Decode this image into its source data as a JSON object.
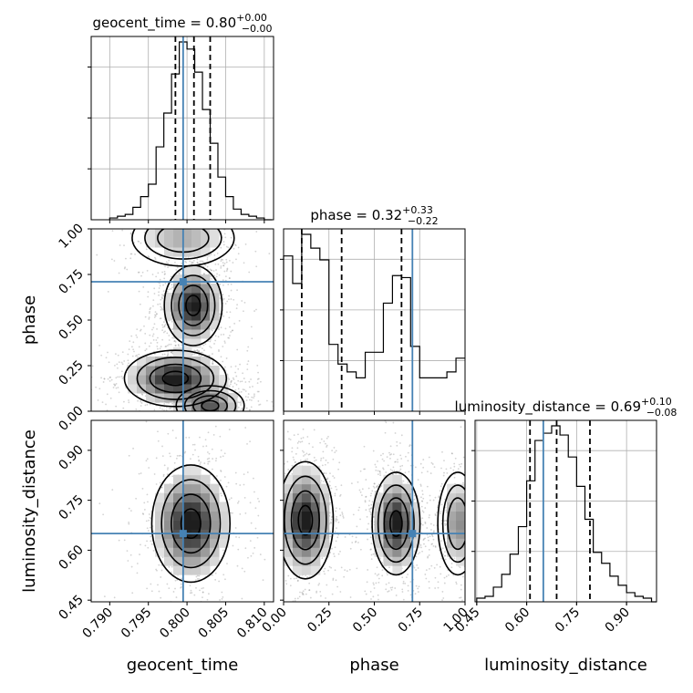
{
  "chart_data": {
    "type": "corner",
    "parameters": [
      "geocent_time",
      "phase",
      "luminosity_distance"
    ],
    "truths": {
      "geocent_time": 0.7995,
      "phase": 0.71,
      "luminosity_distance": 0.65
    },
    "titles": {
      "geocent_time": {
        "name": "geocent_time",
        "median": "0.80",
        "plus": "+0.00",
        "minus": "−0.00"
      },
      "phase": {
        "name": "phase",
        "median": "0.32",
        "plus": "+0.33",
        "minus": "−0.22"
      },
      "luminosity_distance": {
        "name": "luminosity_distance",
        "median": "0.69",
        "plus": "+0.10",
        "minus": "−0.08"
      }
    },
    "ranges": {
      "geocent_time": [
        0.7876,
        0.8112
      ],
      "phase": [
        0.0,
        1.0
      ],
      "luminosity_distance": [
        0.445,
        0.99
      ]
    },
    "ticks": {
      "geocent_time": [
        "0.790",
        "0.795",
        "0.800",
        "0.805",
        "0.810"
      ],
      "phase": [
        "0.00",
        "0.25",
        "0.50",
        "0.75",
        "1.00"
      ],
      "luminosity_distance": [
        "0.45",
        "0.60",
        "0.75",
        "0.90"
      ]
    },
    "quantiles": {
      "geocent_time": [
        0.7985,
        0.8009,
        0.803
      ],
      "phase": [
        0.1,
        0.32,
        0.65
      ],
      "luminosity_distance": [
        0.61,
        0.69,
        0.79
      ]
    },
    "histograms": {
      "geocent_time": {
        "edges": [
          0.79,
          0.791,
          0.792,
          0.793,
          0.794,
          0.795,
          0.796,
          0.797,
          0.798,
          0.799,
          0.8,
          0.801,
          0.802,
          0.803,
          0.804,
          0.805,
          0.806,
          0.807,
          0.808,
          0.809,
          0.81,
          0.811
        ],
        "counts": [
          1,
          2,
          3,
          7,
          13,
          20,
          41,
          60,
          82,
          100,
          96,
          83,
          62,
          43,
          24,
          13,
          6,
          3,
          2,
          1,
          0
        ]
      },
      "phase": {
        "edges": [
          0.0,
          0.05,
          0.1,
          0.15,
          0.2,
          0.25,
          0.3,
          0.35,
          0.4,
          0.45,
          0.5,
          0.55,
          0.6,
          0.65,
          0.7,
          0.75,
          0.8,
          0.85,
          0.9,
          0.95,
          1.0
        ],
        "counts": [
          79,
          65,
          90,
          83,
          77,
          34,
          24,
          20,
          17,
          30,
          30,
          55,
          69,
          68,
          33,
          17,
          17,
          17,
          20,
          27
        ]
      },
      "luminosity_distance": {
        "edges": [
          0.45,
          0.475,
          0.5,
          0.525,
          0.55,
          0.575,
          0.6,
          0.625,
          0.65,
          0.675,
          0.7,
          0.725,
          0.75,
          0.775,
          0.8,
          0.825,
          0.85,
          0.875,
          0.9,
          0.925,
          0.95,
          0.975,
          1.0
        ],
        "counts": [
          2,
          3,
          8,
          15,
          26,
          41,
          66,
          88,
          92,
          96,
          91,
          79,
          63,
          45,
          27,
          21,
          14,
          9,
          5,
          3,
          2,
          0
        ]
      }
    },
    "density_modes": [
      {
        "pair": [
          "geocent_time",
          "phase"
        ],
        "blobs": [
          {
            "cx": 0.8008,
            "cy": 0.58,
            "sx": 0.0017,
            "sy": 0.1,
            "w": 1.0
          },
          {
            "cx": 0.7985,
            "cy": 0.18,
            "sx": 0.003,
            "sy": 0.07,
            "w": 1.0
          },
          {
            "cx": 0.803,
            "cy": 0.03,
            "sx": 0.002,
            "sy": 0.05,
            "w": 0.7
          },
          {
            "cx": 0.7995,
            "cy": 0.95,
            "sx": 0.003,
            "sy": 0.07,
            "w": 0.35
          }
        ]
      },
      {
        "pair": [
          "geocent_time",
          "luminosity_distance"
        ],
        "blobs": [
          {
            "cx": 0.8005,
            "cy": 0.68,
            "sx": 0.0023,
            "sy": 0.08,
            "w": 1.0
          }
        ]
      },
      {
        "pair": [
          "phase",
          "luminosity_distance"
        ],
        "blobs": [
          {
            "cx": 0.12,
            "cy": 0.69,
            "sx": 0.07,
            "sy": 0.08,
            "w": 1.0
          },
          {
            "cx": 0.62,
            "cy": 0.68,
            "sx": 0.06,
            "sy": 0.07,
            "w": 1.0
          },
          {
            "cx": 0.96,
            "cy": 0.68,
            "sx": 0.05,
            "sy": 0.07,
            "w": 0.5
          }
        ]
      }
    ],
    "colors": {
      "truth": "#4682b4",
      "line": "#000000",
      "scatter": "#808080",
      "grid": "#b0b0b0"
    }
  }
}
